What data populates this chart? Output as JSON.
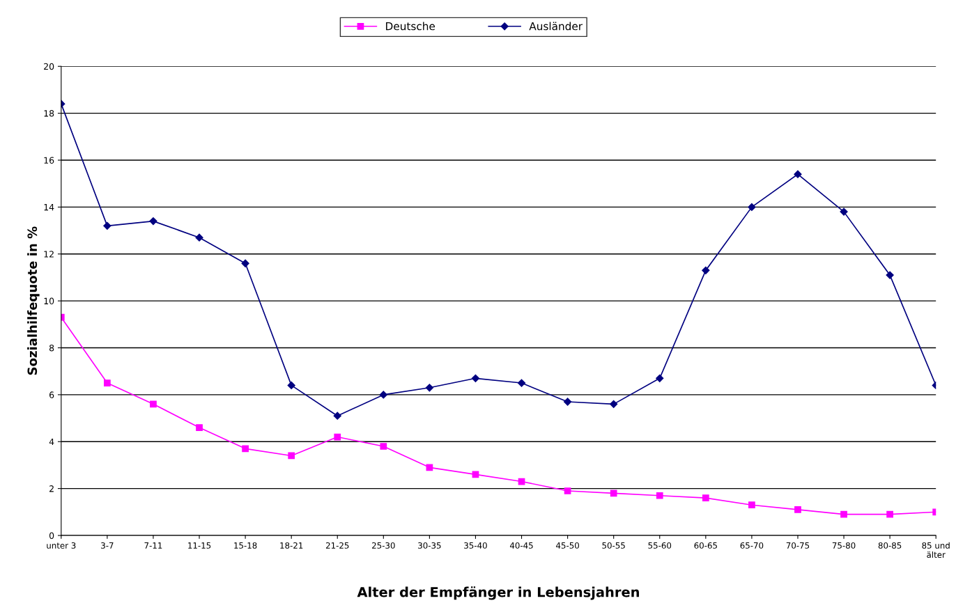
{
  "chart_data": {
    "type": "line",
    "xlabel": "Alter der Empfänger in Lebensjahren",
    "ylabel": "Sozialhilfequote in %",
    "categories": [
      "unter 3",
      "3-7",
      "7-11",
      "11-15",
      "15-18",
      "18-21",
      "21-25",
      "25-30",
      "30-35",
      "35-40",
      "40-45",
      "45-50",
      "50-55",
      "55-60",
      "60-65",
      "65-70",
      "70-75",
      "75-80",
      "80-85",
      "85 und\nälter"
    ],
    "series": [
      {
        "name": "Deutsche",
        "color": "#ff00ff",
        "marker": "square",
        "values": [
          9.3,
          6.5,
          5.6,
          4.6,
          3.7,
          3.4,
          4.2,
          3.8,
          2.9,
          2.6,
          2.3,
          1.9,
          1.8,
          1.7,
          1.6,
          1.3,
          1.1,
          0.9,
          0.9,
          1.0
        ]
      },
      {
        "name": "Ausländer",
        "color": "#000080",
        "marker": "diamond",
        "values": [
          18.4,
          13.2,
          13.4,
          12.7,
          11.6,
          6.4,
          5.1,
          6.0,
          6.3,
          6.7,
          6.5,
          5.7,
          5.6,
          6.7,
          11.3,
          14.0,
          15.4,
          13.8,
          11.1,
          6.4
        ]
      }
    ],
    "ylim": [
      0,
      20
    ],
    "yticks": [
      0,
      2,
      4,
      6,
      8,
      10,
      12,
      14,
      16,
      18,
      20
    ],
    "grid": "y",
    "legend": "top",
    "line_style": "solid"
  }
}
